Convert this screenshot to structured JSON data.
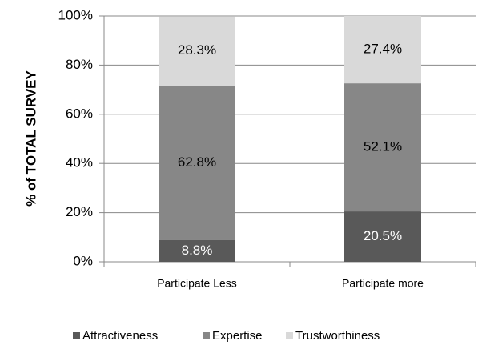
{
  "chart_data": {
    "type": "stacked_bar",
    "y_label": "% of TOTAL SURVEY",
    "categories": [
      "Participate Less",
      "Participate more"
    ],
    "series": [
      {
        "name": "Attractiveness",
        "color": "#595959",
        "values": [
          8.8,
          20.5
        ],
        "value_labels": [
          "8.8%",
          "20.5%"
        ]
      },
      {
        "name": "Expertise",
        "color": "#878787",
        "values": [
          62.8,
          52.1
        ],
        "value_labels": [
          "62.8%",
          "52.1%"
        ]
      },
      {
        "name": "Trustworthiness",
        "color": "#d9d9d9",
        "values": [
          28.3,
          27.4
        ],
        "value_labels": [
          "28.3%",
          "27.4%"
        ]
      }
    ],
    "ylim": [
      0,
      100
    ],
    "yticks": [
      {
        "value": 0,
        "label": "0%"
      },
      {
        "value": 20,
        "label": "20%"
      },
      {
        "value": 40,
        "label": "40%"
      },
      {
        "value": 60,
        "label": "60%"
      },
      {
        "value": 80,
        "label": "80%"
      },
      {
        "value": 100,
        "label": "100%"
      }
    ],
    "grid": true,
    "legend": "bottom"
  }
}
